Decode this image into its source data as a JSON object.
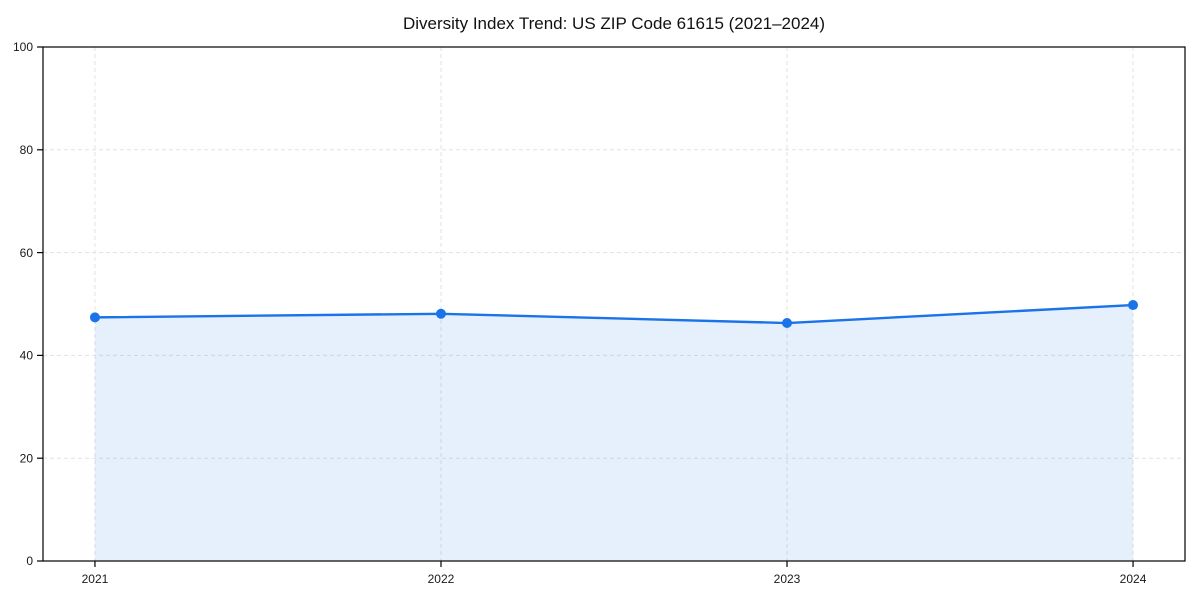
{
  "page": {
    "background": "#ffffff"
  },
  "chart_data": {
    "type": "area",
    "title": "Diversity Index Trend: US ZIP Code 61615 (2021–2024)",
    "categories": [
      "2021",
      "2022",
      "2023",
      "2024"
    ],
    "series": [
      {
        "name": "Diversity Index",
        "values": [
          47.4,
          48.1,
          46.3,
          49.8
        ]
      }
    ],
    "xlabel": "",
    "ylabel": "",
    "ylim": [
      0,
      100
    ],
    "yticks": [
      0,
      20,
      40,
      60,
      80,
      100
    ],
    "grid": "dashed-both-axes",
    "legend_position": "none",
    "colors": {
      "line": "#1a73e8",
      "marker": "#1a73e8",
      "area_fill": "rgba(26,115,232,0.11)",
      "grid": "#e2e2e2",
      "axis_frame": "#000000",
      "tick_text": "#1a1a1a",
      "title_text": "#111111"
    }
  }
}
